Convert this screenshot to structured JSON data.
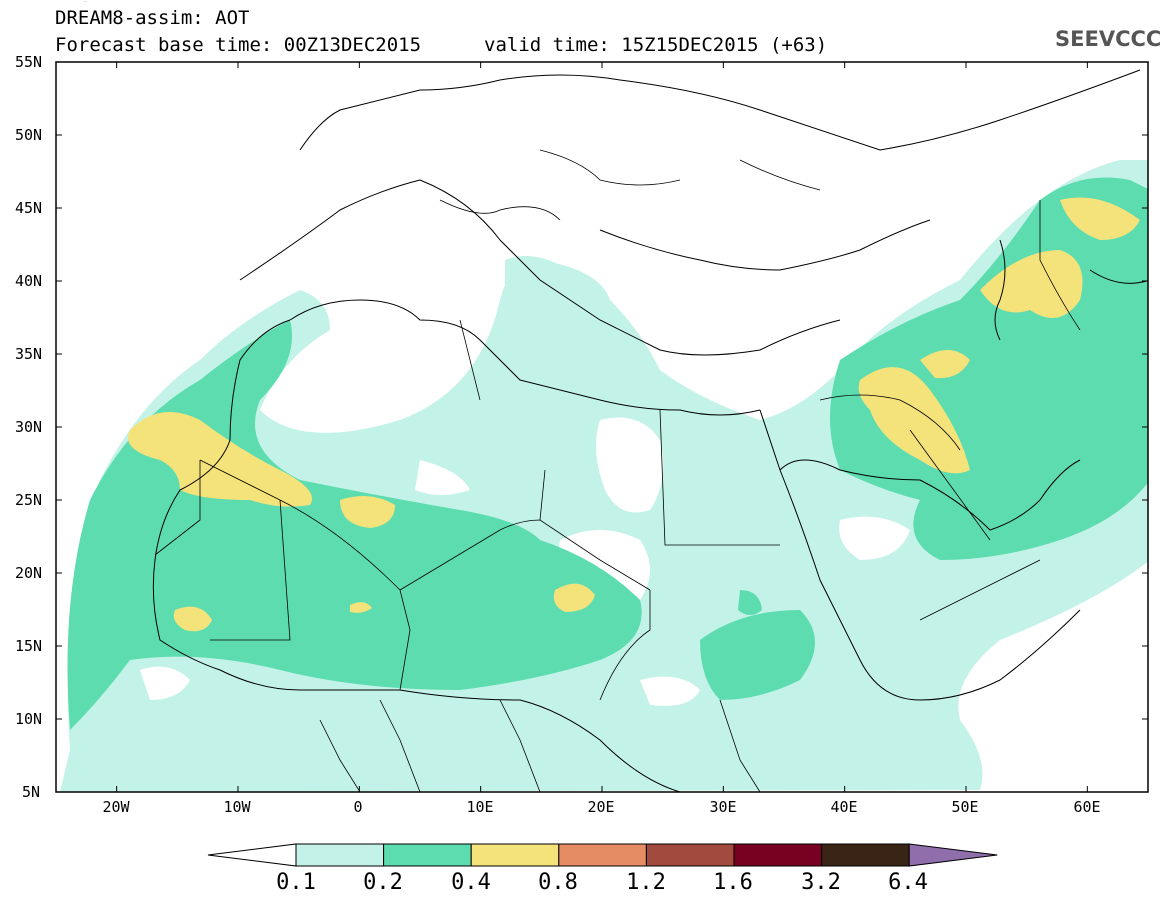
{
  "header": {
    "title_line1": "DREAM8-assim: AOT",
    "title_line2": "Forecast base time: 00Z13DEC2015",
    "valid_time": "valid time: 15Z15DEC2015 (+63)",
    "logo_text": "SEEVCCC"
  },
  "map": {
    "lat_labels": [
      "55N",
      "50N",
      "45N",
      "40N",
      "35N",
      "30N",
      "25N",
      "20N",
      "15N",
      "10N",
      "5N"
    ],
    "lon_labels": [
      "20W",
      "10W",
      "0",
      "10E",
      "20E",
      "30E",
      "40E",
      "50E",
      "60E"
    ],
    "lon_range": [
      -25,
      65
    ],
    "lat_range": [
      5,
      55
    ]
  },
  "colorbar": {
    "labels": [
      "0.1",
      "0.2",
      "0.4",
      "0.8",
      "1.2",
      "1.6",
      "3.2",
      "6.4"
    ],
    "colors": [
      "#ffffff",
      "#c3f2e8",
      "#5ddcb0",
      "#f4e27a",
      "#e58c65",
      "#a24a3d",
      "#780020",
      "#3a2415",
      "#8f6eab"
    ]
  },
  "icons": {
    "logo": "cloud-icon"
  }
}
